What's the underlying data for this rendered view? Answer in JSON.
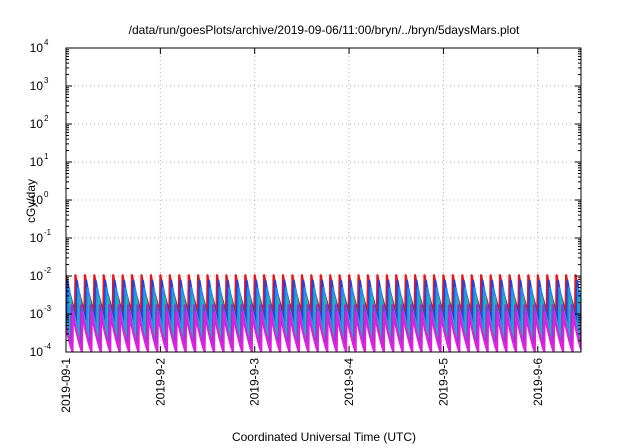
{
  "chart_data": {
    "type": "line",
    "title": "/data/run/goesPlots/archive/2019-09-06/11:00/bryn/../bryn/5daysMars.plot",
    "xlabel": "Coordinated Universal Time (UTC)",
    "ylabel": "cGy/day",
    "x_range": [
      "2019-09-01T00:00",
      "2019-09-06T11:00"
    ],
    "x_tick_labels": [
      "2019-09-1",
      "2019-9-2",
      "2019-9-3",
      "2019-9-4",
      "2019-9-5",
      "2019-9-6"
    ],
    "y_scale": "log",
    "ylim": [
      0.0001,
      10000
    ],
    "y_tick_labels": [
      {
        "base": "10",
        "exp": "4"
      },
      {
        "base": "10",
        "exp": "3"
      },
      {
        "base": "10",
        "exp": "2"
      },
      {
        "base": "10",
        "exp": "1"
      },
      {
        "base": "10",
        "exp": "0"
      },
      {
        "base": "10",
        "exp": "-1"
      },
      {
        "base": "10",
        "exp": "-2"
      },
      {
        "base": "10",
        "exp": "-3"
      },
      {
        "base": "10",
        "exp": "-4"
      }
    ],
    "grid": true,
    "sawtooth_period_hours": 2.4,
    "series": [
      {
        "color": "#e8161b",
        "peak": 0.0105,
        "trough": 0.0011,
        "phase_hours": 0.0
      },
      {
        "color": "#2f3fd0",
        "peak": 0.0075,
        "trough": 0.00065,
        "phase_hours": 0.35
      },
      {
        "color": "#1e90f0",
        "peak": 0.0048,
        "trough": 0.00038,
        "phase_hours": 0.7
      },
      {
        "color": "#20b0c0",
        "peak": 0.0028,
        "trough": 0.00022,
        "phase_hours": 1.05
      },
      {
        "color": "#8a3cc8",
        "peak": 0.0017,
        "trough": 0.00013,
        "phase_hours": 1.4
      },
      {
        "color": "#e020e0",
        "peak": 0.0011,
        "trough": 0.0001,
        "phase_hours": 1.75
      }
    ]
  }
}
